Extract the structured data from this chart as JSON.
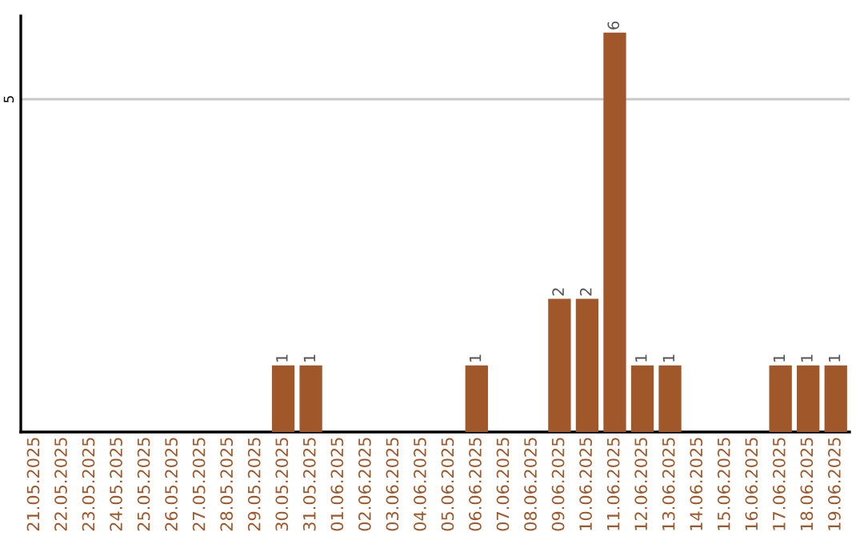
{
  "chart_data": {
    "type": "bar",
    "categories": [
      "21.05.2025",
      "22.05.2025",
      "23.05.2025",
      "24.05.2025",
      "25.05.2025",
      "26.05.2025",
      "27.05.2025",
      "28.05.2025",
      "29.05.2025",
      "30.05.2025",
      "31.05.2025",
      "01.06.2025",
      "02.06.2025",
      "03.06.2025",
      "04.06.2025",
      "05.06.2025",
      "06.06.2025",
      "07.06.2025",
      "08.06.2025",
      "09.06.2025",
      "10.06.2025",
      "11.06.2025",
      "12.06.2025",
      "13.06.2025",
      "14.06.2025",
      "15.06.2025",
      "16.06.2025",
      "17.06.2025",
      "18.06.2025",
      "19.06.2025"
    ],
    "values": [
      0,
      0,
      0,
      0,
      0,
      0,
      0,
      0,
      0,
      1,
      1,
      0,
      0,
      0,
      0,
      0,
      1,
      0,
      0,
      2,
      2,
      6,
      1,
      1,
      0,
      0,
      0,
      1,
      1,
      1
    ],
    "value_labels": [
      null,
      null,
      null,
      null,
      null,
      null,
      null,
      null,
      null,
      "1",
      "1",
      null,
      null,
      null,
      null,
      null,
      "1",
      null,
      null,
      "2",
      "2",
      "6",
      "1",
      "1",
      null,
      null,
      null,
      "1",
      "1",
      "1"
    ],
    "color": "#a0572a",
    "ylim": [
      0,
      6.25
    ],
    "yticks": [
      5
    ],
    "grid": "y"
  }
}
